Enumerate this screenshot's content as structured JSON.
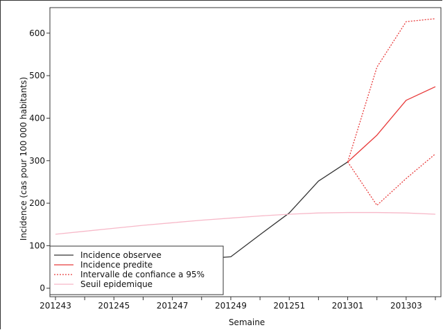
{
  "chart_data": {
    "type": "line",
    "xlabel": "Semaine",
    "ylabel": "Incidence (cas pour 100 000 habitants)",
    "x_tick_labels": [
      "201243",
      "201245",
      "201247",
      "201249",
      "201251",
      "201301",
      "201303"
    ],
    "y_ticks": [
      0,
      100,
      200,
      300,
      400,
      500,
      600
    ],
    "ylim": [
      -20,
      660
    ],
    "weeks": [
      "201243",
      "201244",
      "201245",
      "201246",
      "201247",
      "201248",
      "201249",
      "201250",
      "201251",
      "201252",
      "201301",
      "201302",
      "201303",
      "201304"
    ],
    "legend_position": "bottom-left",
    "series": [
      {
        "name": "Incidence observee",
        "style": "solid",
        "color": "#333333",
        "values": [
          null,
          null,
          null,
          null,
          null,
          69,
          74,
          126,
          177,
          252,
          297,
          null,
          null,
          null
        ]
      },
      {
        "name": "Incidence predite",
        "style": "solid",
        "color": "#e83a3a",
        "values": [
          null,
          null,
          null,
          null,
          null,
          null,
          null,
          null,
          null,
          null,
          297,
          360,
          442,
          474
        ]
      },
      {
        "name": "Intervalle de confiance a 95%",
        "style": "dotted",
        "color": "#e83a3a",
        "values_upper": [
          null,
          null,
          null,
          null,
          null,
          null,
          null,
          null,
          null,
          null,
          297,
          520,
          627,
          634
        ],
        "values_lower": [
          null,
          null,
          null,
          null,
          null,
          null,
          null,
          null,
          null,
          null,
          297,
          195,
          258,
          316
        ]
      },
      {
        "name": "Seuil epidemique",
        "style": "solid",
        "color": "#f7b8c8",
        "values": [
          127,
          134,
          141,
          148,
          154,
          160,
          165,
          170,
          174,
          177,
          178,
          178,
          177,
          174
        ]
      }
    ]
  }
}
